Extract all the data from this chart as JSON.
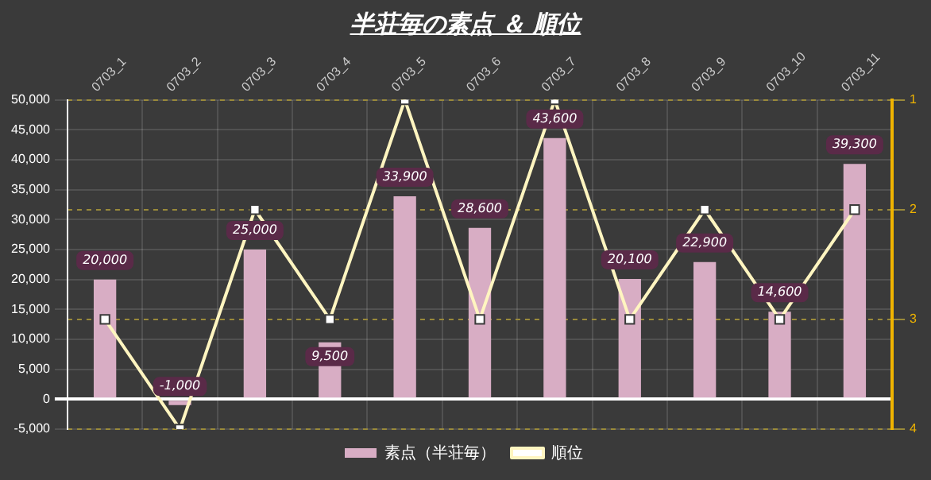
{
  "chart_data": {
    "type": "bar",
    "title": "半荘毎の素点 ＆ 順位",
    "categories": [
      "0703_1",
      "0703_2",
      "0703_3",
      "0703_4",
      "0703_5",
      "0703_6",
      "0703_7",
      "0703_8",
      "0703_9",
      "0703_10",
      "0703_11"
    ],
    "series": [
      {
        "name": "素点（半荘毎）",
        "color": "#d8adc4",
        "values": [
          20000,
          -1000,
          25000,
          9500,
          33900,
          28600,
          43600,
          20100,
          22900,
          14600,
          39300
        ],
        "value_labels": [
          "20,000",
          "-1,000",
          "25,000",
          "9,500",
          "33,900",
          "28,600",
          "43,600",
          "20,100",
          "22,900",
          "14,600",
          "39,300"
        ]
      },
      {
        "name": "順位",
        "type": "line",
        "axis": "y2",
        "color": "#fff5c0",
        "marker": "square",
        "values": [
          3,
          4,
          2,
          3,
          1,
          3,
          1,
          3,
          2,
          3,
          2
        ]
      }
    ],
    "ylim": [
      -5000,
      50000
    ],
    "yticks": [
      {
        "value": -5000,
        "label": "-5,000"
      },
      0,
      {
        "value": 5000,
        "label": "5,000"
      },
      {
        "value": 10000,
        "label": "10,000"
      },
      {
        "value": 15000,
        "label": "15,000"
      },
      {
        "value": 20000,
        "label": "20,000"
      },
      {
        "value": 25000,
        "label": "25,000"
      },
      {
        "value": 30000,
        "label": "30,000"
      },
      {
        "value": 35000,
        "label": "35,000"
      },
      {
        "value": 40000,
        "label": "40,000"
      },
      {
        "value": 45000,
        "label": "45,000"
      },
      {
        "value": 50000,
        "label": "50,000"
      }
    ],
    "y2lim": [
      4,
      1
    ],
    "y2ticks": [
      1,
      2,
      3,
      4
    ],
    "grid": true,
    "legend": "bottom"
  }
}
